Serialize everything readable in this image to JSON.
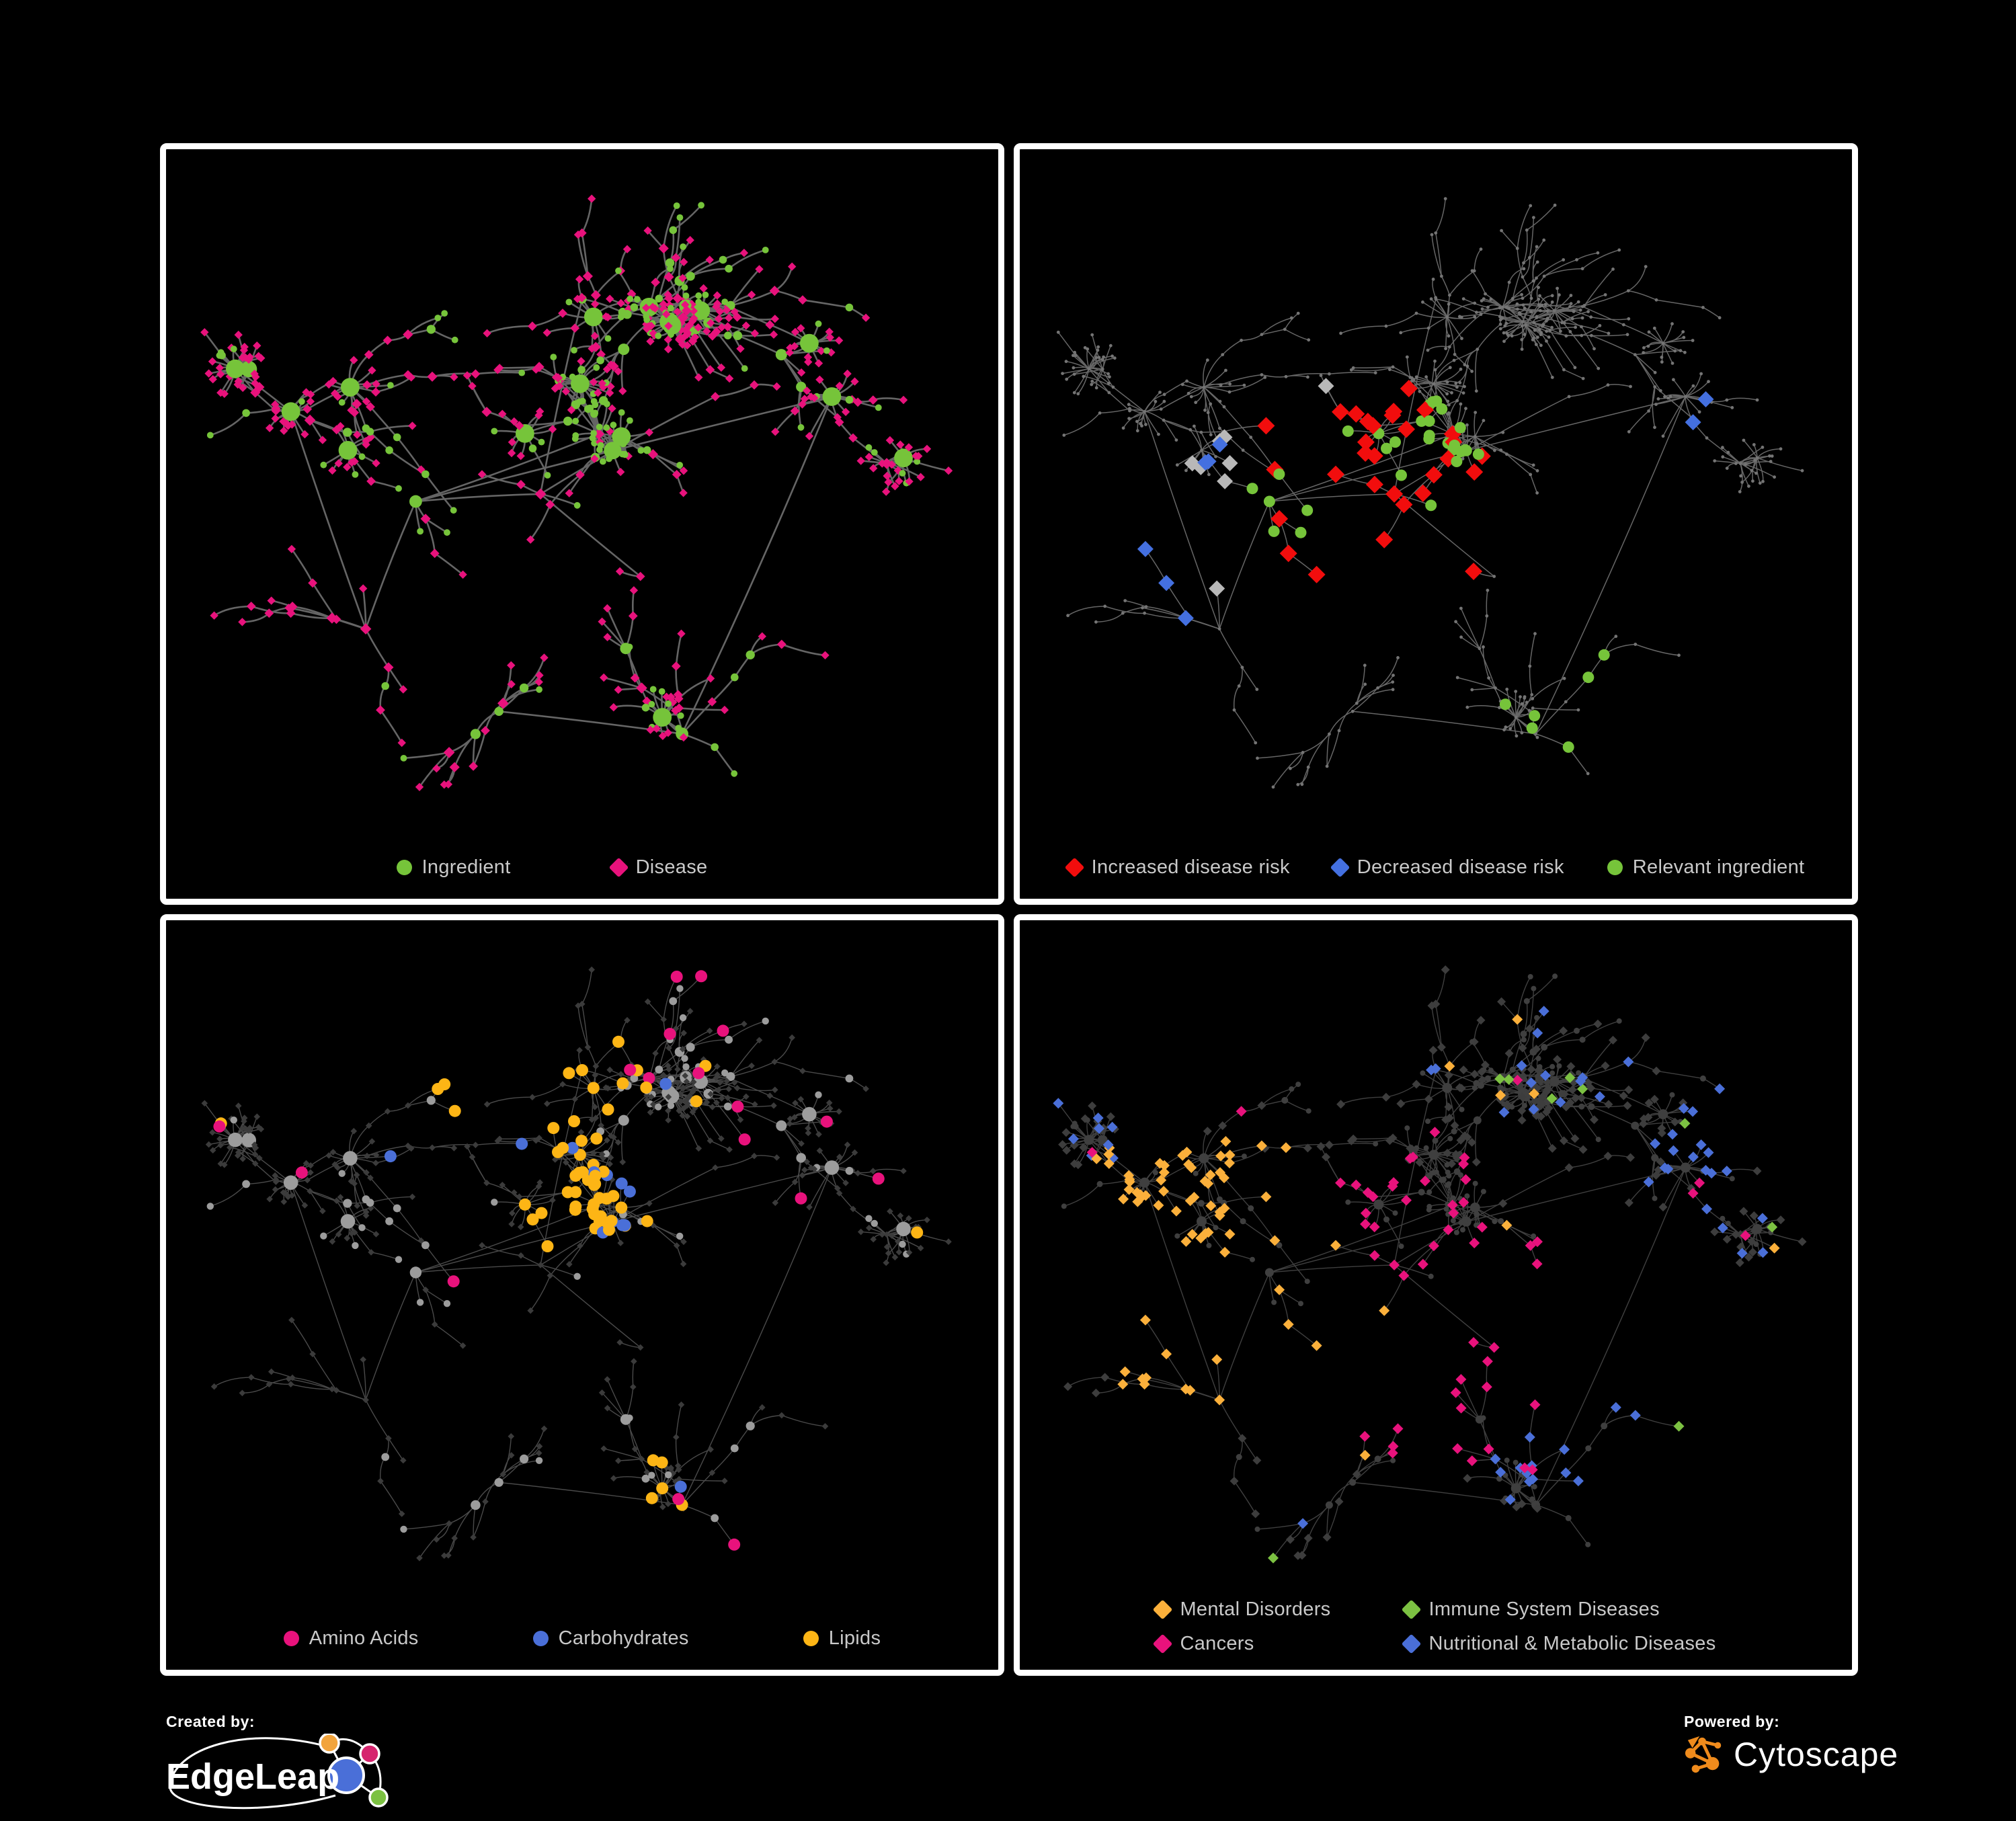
{
  "figure": {
    "background": "#000000",
    "panel_border": "#ffffff",
    "legend_text_color": "#c9c9c9"
  },
  "panels": [
    {
      "name": "ingredient-disease-network",
      "legend": [
        {
          "label": "Ingredient",
          "shape": "circle",
          "color": "#76c43a"
        },
        {
          "label": "Disease",
          "shape": "diamond",
          "color": "#e8127c"
        }
      ]
    },
    {
      "name": "disease-risk-network",
      "legend": [
        {
          "label": "Increased disease risk",
          "shape": "diamond",
          "color": "#f20d0d"
        },
        {
          "label": "Decreased disease risk",
          "shape": "diamond",
          "color": "#4470e0"
        },
        {
          "label": "Relevant ingredient",
          "shape": "circle",
          "color": "#76c43a"
        }
      ]
    },
    {
      "name": "nutrient-class-network",
      "legend": [
        {
          "label": "Amino Acids",
          "shape": "circle",
          "color": "#e8127c"
        },
        {
          "label": "Carbohydrates",
          "shape": "circle",
          "color": "#4a6fd8"
        },
        {
          "label": "Lipids",
          "shape": "circle",
          "color": "#fdb515"
        }
      ]
    },
    {
      "name": "disease-class-network",
      "legend": [
        {
          "label": "Mental Disorders",
          "shape": "diamond",
          "color": "#fbb03b"
        },
        {
          "label": "Immune System Diseases",
          "shape": "diamond",
          "color": "#7cc142"
        },
        {
          "label": "Cancers",
          "shape": "diamond",
          "color": "#e8127c"
        },
        {
          "label": "Nutritional & Metabolic Diseases",
          "shape": "diamond",
          "color": "#4a6fd8"
        }
      ]
    }
  ],
  "footer": {
    "created_by": "Created by:",
    "brand": "EdgeLeap",
    "powered_by": "Powered by:",
    "engine": "Cytoscape",
    "cytoscape_color": "#ef8b1c",
    "edgeleap_colors": {
      "orange": "#f2a43c",
      "pink": "#d6246e",
      "blue": "#4a6fd8",
      "green": "#7cc142"
    }
  },
  "network": {
    "seed": 20,
    "node_count": 560,
    "extra_links": 80,
    "burst_probability": 0.07,
    "circle_cluster": [
      0.52,
      0.38,
      0.055,
      0.85
    ],
    "cores": [
      [
        0.3,
        0.47
      ],
      [
        0.45,
        0.46
      ],
      [
        0.52,
        0.38
      ],
      [
        0.57,
        0.57
      ],
      [
        0.24,
        0.64
      ],
      [
        0.5,
        0.2
      ],
      [
        0.66,
        0.33
      ],
      [
        0.8,
        0.33
      ],
      [
        0.62,
        0.78
      ],
      [
        0.4,
        0.75
      ],
      [
        0.15,
        0.35
      ]
    ],
    "panels": [
      {
        "edge": {
          "color": "#6b6b6b",
          "width": 2.6,
          "opacity": 0.95
        },
        "nodes": {
          "mode": "typed",
          "circle_color": "#76c43a",
          "diamond_color": "#e8127c",
          "circle_r": [
            4,
            0.9,
            11
          ],
          "diamond_s": [
            5.5,
            0.7,
            4
          ]
        },
        "highlights": []
      },
      {
        "edge": {
          "color": "#787878",
          "width": 1.5,
          "opacity": 0.85
        },
        "nodes": {
          "mode": "dim",
          "base_color": "#747474",
          "base_radius": 2.4
        },
        "highlights": [
          {
            "shape": "diamond",
            "color": "#f20d0d",
            "size": 13,
            "count": 30,
            "cluster": [
              0.42,
              0.47,
              0.25
            ]
          },
          {
            "shape": "diamond",
            "color": "#b8b8b8",
            "size": 12,
            "count": 8,
            "cluster": [
              0.38,
              0.5,
              0.3
            ]
          },
          {
            "shape": "diamond",
            "color": "#4470e0",
            "size": 12,
            "count": 6,
            "cluster": [
              0.28,
              0.5,
              0.13
            ]
          },
          {
            "shape": "diamond",
            "color": "#4470e0",
            "size": 12,
            "count": 2,
            "cluster": [
              0.8,
              0.33,
              0.06
            ]
          },
          {
            "shape": "circle",
            "color": "#76c43a",
            "size": 8.5,
            "count": 30,
            "cluster": [
              0.42,
              0.46,
              0.28
            ]
          },
          {
            "shape": "circle",
            "color": "#76c43a",
            "size": 8.5,
            "count": 6,
            "cluster": [
              0.68,
              0.7,
              0.18
            ]
          }
        ]
      },
      {
        "edge": {
          "color": "#939393",
          "width": 1.4,
          "opacity": 0.5
        },
        "nodes": {
          "mode": "classed",
          "circle_color": "#9c9c9c",
          "diamond_color": "#3b3b3b",
          "circle_r": [
            4.5,
            0.7,
            9
          ],
          "diamond_s": [
            4.8,
            0,
            1
          ]
        },
        "highlights": [
          {
            "shape": "circle",
            "color": "#fdb515",
            "size": 9,
            "count": 34,
            "cluster": [
              0.48,
              0.38,
              0.11
            ]
          },
          {
            "shape": "circle",
            "color": "#fdb515",
            "size": 9,
            "count": 12,
            "cluster": [
              0.44,
              0.2,
              0.1
            ]
          },
          {
            "shape": "circle",
            "color": "#fdb515",
            "size": 9,
            "count": 14
          },
          {
            "shape": "circle",
            "color": "#4a6fd8",
            "size": 9,
            "count": 9,
            "cluster": [
              0.48,
              0.38,
              0.1
            ]
          },
          {
            "shape": "circle",
            "color": "#4a6fd8",
            "size": 9,
            "count": 4
          },
          {
            "shape": "circle",
            "color": "#e8127c",
            "size": 9,
            "count": 17
          }
        ]
      },
      {
        "edge": {
          "color": "#8d8d8d",
          "width": 1.4,
          "opacity": 0.45
        },
        "nodes": {
          "mode": "classed",
          "circle_color": "#3f3f3f",
          "diamond_color": "#3d3d3d",
          "circle_r": [
            3.5,
            0.5,
            8
          ],
          "diamond_s": [
            6.5,
            0,
            1
          ]
        },
        "highlights": [
          {
            "shape": "diamond",
            "color": "#fbb03b",
            "size": 8,
            "count": 66,
            "cluster": [
              0.22,
              0.47,
              0.13
            ]
          },
          {
            "shape": "diamond",
            "color": "#fbb03b",
            "size": 8,
            "count": 8
          },
          {
            "shape": "diamond",
            "color": "#e8127c",
            "size": 8,
            "count": 44,
            "cluster": [
              0.44,
              0.54,
              0.13
            ]
          },
          {
            "shape": "diamond",
            "color": "#e8127c",
            "size": 8,
            "count": 10
          },
          {
            "shape": "diamond",
            "color": "#4a6fd8",
            "size": 8,
            "count": 12,
            "cluster": [
              0.57,
              0.58,
              0.08
            ]
          },
          {
            "shape": "diamond",
            "color": "#4a6fd8",
            "size": 8,
            "count": 12,
            "cluster": [
              0.83,
              0.3,
              0.12
            ]
          },
          {
            "shape": "diamond",
            "color": "#4a6fd8",
            "size": 8,
            "count": 34
          },
          {
            "shape": "diamond",
            "color": "#7cc142",
            "size": 8,
            "count": 9
          }
        ]
      }
    ]
  }
}
